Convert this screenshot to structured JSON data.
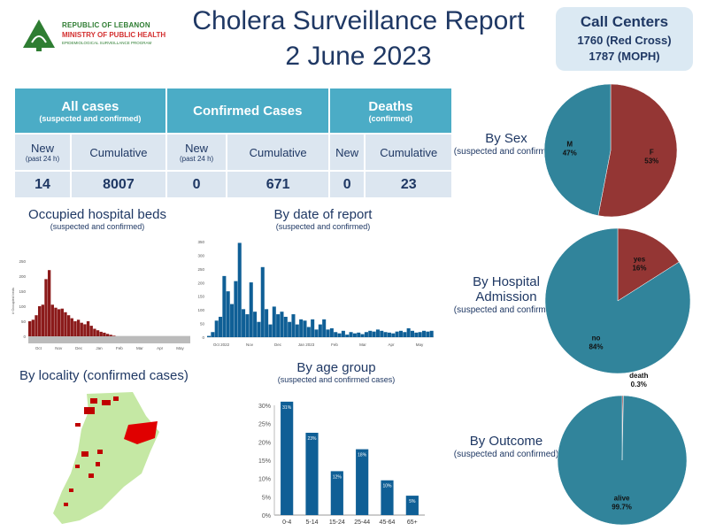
{
  "logo": {
    "line1": "REPUBLIC OF LEBANON",
    "line2": "MINISTRY OF PUBLIC HEALTH",
    "line3": "EPIDEMIOLOGICAL SURVEILLANCE PROGRAM"
  },
  "header": {
    "title": "Cholera Surveillance Report",
    "date": "2 June 2023"
  },
  "call_centers": {
    "title": "Call Centers",
    "line1": "1760 (Red Cross)",
    "line2": "1787 (MOPH)"
  },
  "summary": {
    "groups": [
      {
        "label": "All cases",
        "sub": "(suspected and confirmed)",
        "new_label": "New",
        "new_sub": "(past 24 h)",
        "cum_label": "Cumulative",
        "new": "14",
        "cumulative": "8007"
      },
      {
        "label": "Confirmed Cases",
        "sub": "",
        "new_label": "New",
        "new_sub": "(past 24 h)",
        "cum_label": "Cumulative",
        "new": "0",
        "cumulative": "671"
      },
      {
        "label": "Deaths",
        "sub": "(confirmed)",
        "new_label": "New",
        "new_sub": "",
        "cum_label": "Cumulative",
        "new": "0",
        "cumulative": "23"
      }
    ]
  },
  "colors": {
    "teal": "#31849b",
    "red": "#943634",
    "bar_blue": "#0f5f96",
    "header_teal": "#4bacc6",
    "map_green": "#c5e8a4",
    "map_red": "#e00000"
  },
  "locality": {
    "title": "By locality (confirmed cases)"
  },
  "chart_data": [
    {
      "type": "bar",
      "title": "Occupied hospital beds",
      "subtitle": "(suspected and confirmed)",
      "ylabel": "# Occupied beds",
      "ylim": [
        0,
        250
      ],
      "yticks": [
        "0",
        "50",
        "100",
        "150",
        "200",
        "250"
      ],
      "month_labels": [
        "Oct",
        "Nov",
        "Dec",
        "Jan",
        "Feb",
        "Mar",
        "Apr",
        "May"
      ],
      "values": [
        50,
        55,
        70,
        100,
        105,
        190,
        220,
        105,
        95,
        90,
        92,
        80,
        70,
        60,
        50,
        55,
        45,
        40,
        50,
        35,
        25,
        20,
        15,
        12,
        8,
        5,
        2,
        0,
        0,
        0,
        0,
        0,
        0,
        0,
        0,
        0,
        0,
        0,
        0,
        0,
        0,
        0,
        0,
        0,
        0,
        0,
        0,
        0,
        0,
        0
      ],
      "color": "#8b1a1a"
    },
    {
      "type": "bar",
      "title": "By date of report",
      "subtitle": "(suspected and confirmed)",
      "ylim": [
        0,
        375
      ],
      "yticks": [
        "0",
        "50",
        "100",
        "150",
        "200",
        "250",
        "300",
        "350"
      ],
      "month_labels": [
        "Oct 2022",
        "Nov",
        "Dec",
        "Jan 2023",
        "Feb",
        "Mar",
        "Apr",
        "May"
      ],
      "values": [
        5,
        20,
        65,
        80,
        240,
        180,
        130,
        220,
        370,
        110,
        90,
        215,
        100,
        60,
        275,
        110,
        50,
        120,
        90,
        100,
        80,
        60,
        90,
        50,
        70,
        65,
        40,
        70,
        30,
        50,
        70,
        30,
        35,
        20,
        15,
        25,
        10,
        20,
        15,
        18,
        12,
        20,
        25,
        22,
        30,
        25,
        20,
        18,
        15,
        22,
        25,
        20,
        35,
        25,
        18,
        20,
        25,
        22,
        25
      ],
      "color": "#0f5f96"
    },
    {
      "type": "bar",
      "title": "By age group",
      "subtitle": "(suspected and confirmed cases)",
      "categories": [
        "0-4",
        "5-14",
        "15-24",
        "25-44",
        "45-64",
        "65+"
      ],
      "values": [
        31,
        22.5,
        12,
        18,
        9.5,
        5.3
      ],
      "data_labels": [
        "31%",
        "23%",
        "12%",
        "18%",
        "10%",
        "5%"
      ],
      "ylim": [
        0,
        30
      ],
      "yticks": [
        "0%",
        "5%",
        "10%",
        "15%",
        "20%",
        "25%",
        "30%"
      ],
      "color": "#0f5f96"
    },
    {
      "type": "pie",
      "title": "By Sex",
      "subtitle": "(suspected and confirmed)",
      "slices": [
        {
          "name": "F",
          "value": 53,
          "label": "53%",
          "color": "#943634"
        },
        {
          "name": "M",
          "value": 47,
          "label": "47%",
          "color": "#31849b"
        }
      ]
    },
    {
      "type": "pie",
      "title": "By Hospital Admission",
      "subtitle": "(suspected and confirmed)",
      "slices": [
        {
          "name": "yes",
          "value": 16,
          "label": "16%",
          "color": "#943634"
        },
        {
          "name": "no",
          "value": 84,
          "label": "84%",
          "color": "#31849b"
        }
      ]
    },
    {
      "type": "pie",
      "title": "By Outcome",
      "subtitle": "(suspected and confirmed)",
      "slices": [
        {
          "name": "death",
          "value": 0.3,
          "label": "0.3%",
          "color": "#943634"
        },
        {
          "name": "alive",
          "value": 99.7,
          "label": "99.7%",
          "color": "#31849b"
        }
      ]
    }
  ]
}
